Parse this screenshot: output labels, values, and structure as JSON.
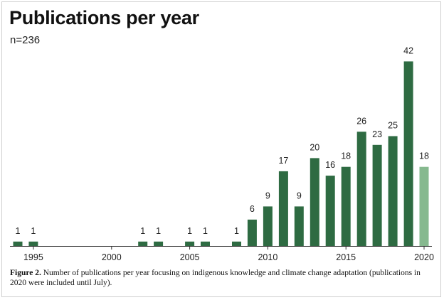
{
  "figure": {
    "title": "Publications per year",
    "subtitle": "n=236",
    "caption_label": "Figure 2.",
    "caption_text": "Number of publications per year focusing on indigenous knowledge and climate change adaptation (publications in 2020 were included until July)."
  },
  "chart_data": {
    "type": "bar",
    "title": "Publications per year",
    "subtitle": "n=236",
    "xlabel": "",
    "ylabel": "",
    "x_ticks": [
      1995,
      2000,
      2005,
      2010,
      2015,
      2020
    ],
    "xlim": [
      1993.5,
      2020.5
    ],
    "ylim": [
      0,
      44
    ],
    "grid": false,
    "data_labels": true,
    "colors": {
      "bar": "#2e6b42",
      "bar_partial": "#86b98f",
      "axis": "#333333",
      "text": "#222222"
    },
    "bars": [
      {
        "year": 1994,
        "value": 1
      },
      {
        "year": 1995,
        "value": 1
      },
      {
        "year": 2002,
        "value": 1
      },
      {
        "year": 2003,
        "value": 1
      },
      {
        "year": 2005,
        "value": 1
      },
      {
        "year": 2006,
        "value": 1
      },
      {
        "year": 2008,
        "value": 1
      },
      {
        "year": 2009,
        "value": 6
      },
      {
        "year": 2010,
        "value": 9
      },
      {
        "year": 2011,
        "value": 17
      },
      {
        "year": 2012,
        "value": 9
      },
      {
        "year": 2013,
        "value": 20
      },
      {
        "year": 2014,
        "value": 16
      },
      {
        "year": 2015,
        "value": 18
      },
      {
        "year": 2016,
        "value": 26
      },
      {
        "year": 2017,
        "value": 23
      },
      {
        "year": 2018,
        "value": 25
      },
      {
        "year": 2019,
        "value": 42
      },
      {
        "year": 2020,
        "value": 18,
        "partial": true
      }
    ]
  }
}
